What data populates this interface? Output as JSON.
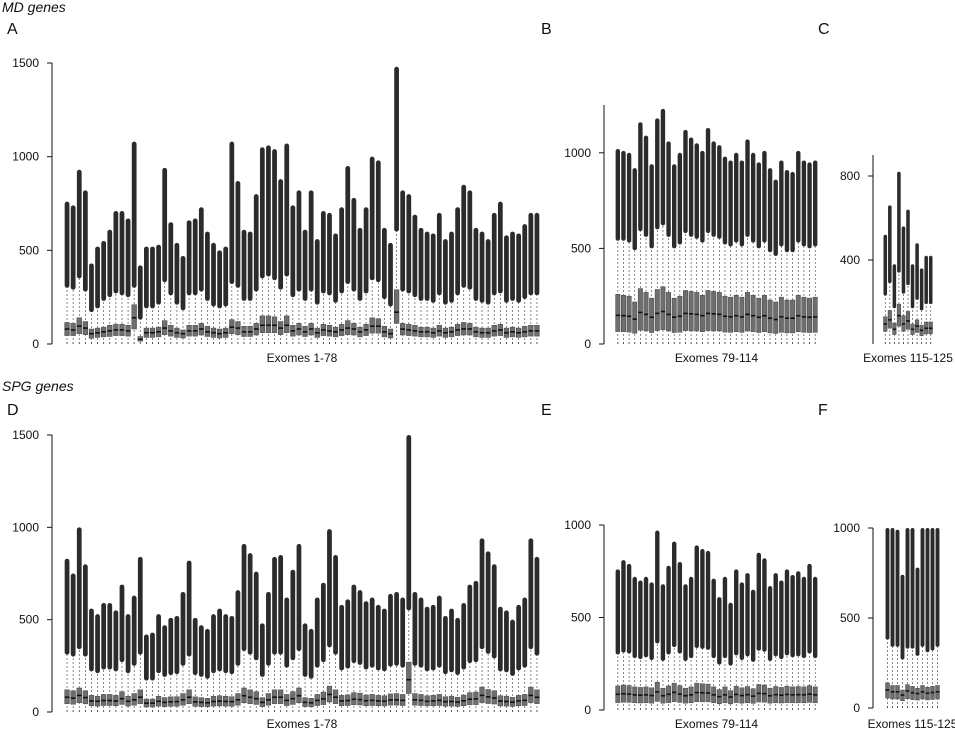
{
  "figure": {
    "sections": [
      {
        "title": "MD genes"
      },
      {
        "title": "SPG genes"
      }
    ]
  },
  "chart_data": [
    {
      "panel": "A",
      "section": "MD genes",
      "type": "box",
      "xlabel": "Exomes 1-78",
      "ylabel": "",
      "ylim": [
        0,
        1500
      ],
      "yticks": [
        0,
        500,
        1000,
        1500
      ],
      "n": 78,
      "upper_whisker": [
        760,
        740,
        930,
        820,
        430,
        520,
        550,
        610,
        710,
        710,
        670,
        1080,
        420,
        520,
        520,
        530,
        940,
        650,
        540,
        470,
        660,
        670,
        730,
        600,
        540,
        500,
        520,
        1080,
        870,
        610,
        600,
        800,
        1050,
        1060,
        1040,
        880,
        1070,
        740,
        820,
        610,
        820,
        560,
        710,
        700,
        590,
        730,
        950,
        780,
        620,
        730,
        1000,
        980,
        620,
        540,
        1480,
        820,
        800,
        690,
        620,
        600,
        590,
        700,
        560,
        600,
        730,
        850,
        820,
        620,
        600,
        560,
        700,
        760,
        580,
        600,
        590,
        640,
        700,
        700
      ],
      "upper_hinge": [
        300,
        290,
        350,
        280,
        170,
        190,
        230,
        250,
        270,
        260,
        250,
        300,
        130,
        190,
        190,
        210,
        330,
        260,
        210,
        180,
        260,
        260,
        280,
        230,
        200,
        190,
        200,
        320,
        300,
        230,
        230,
        280,
        350,
        360,
        340,
        290,
        360,
        250,
        280,
        230,
        280,
        210,
        270,
        260,
        220,
        270,
        320,
        280,
        230,
        270,
        340,
        330,
        240,
        200,
        600,
        280,
        270,
        250,
        230,
        230,
        220,
        260,
        210,
        220,
        260,
        300,
        290,
        230,
        220,
        210,
        260,
        270,
        220,
        230,
        220,
        240,
        260,
        260
      ],
      "q3": [
        115,
        110,
        140,
        120,
        80,
        85,
        90,
        100,
        105,
        105,
        100,
        210,
        40,
        85,
        85,
        90,
        125,
        100,
        85,
        75,
        100,
        100,
        110,
        95,
        85,
        80,
        85,
        130,
        120,
        95,
        95,
        110,
        150,
        150,
        145,
        120,
        150,
        100,
        110,
        95,
        110,
        85,
        105,
        100,
        90,
        105,
        125,
        110,
        90,
        105,
        140,
        135,
        95,
        80,
        290,
        110,
        105,
        100,
        90,
        90,
        85,
        100,
        85,
        90,
        105,
        115,
        110,
        90,
        85,
        85,
        100,
        105,
        85,
        90,
        85,
        95,
        100,
        100
      ],
      "median": [
        80,
        75,
        95,
        85,
        55,
        60,
        65,
        70,
        75,
        75,
        70,
        140,
        25,
        60,
        60,
        65,
        85,
        70,
        60,
        55,
        70,
        70,
        80,
        65,
        60,
        55,
        60,
        90,
        85,
        65,
        65,
        80,
        100,
        100,
        100,
        85,
        100,
        70,
        80,
        65,
        80,
        60,
        75,
        70,
        65,
        75,
        85,
        80,
        65,
        75,
        95,
        95,
        65,
        55,
        170,
        80,
        75,
        70,
        65,
        65,
        60,
        70,
        60,
        65,
        75,
        80,
        80,
        65,
        60,
        60,
        70,
        75,
        60,
        65,
        60,
        65,
        70,
        70
      ],
      "q1": [
        45,
        45,
        55,
        50,
        30,
        35,
        38,
        40,
        45,
        45,
        42,
        80,
        15,
        35,
        35,
        38,
        50,
        42,
        35,
        32,
        42,
        42,
        48,
        40,
        35,
        32,
        35,
        55,
        50,
        40,
        40,
        48,
        60,
        60,
        60,
        50,
        60,
        42,
        48,
        40,
        48,
        35,
        45,
        42,
        38,
        45,
        50,
        48,
        38,
        45,
        58,
        58,
        38,
        32,
        110,
        48,
        45,
        42,
        38,
        38,
        35,
        42,
        35,
        38,
        45,
        48,
        48,
        38,
        35,
        35,
        42,
        45,
        35,
        38,
        35,
        38,
        42,
        42
      ]
    },
    {
      "panel": "B",
      "section": "MD genes",
      "type": "box",
      "xlabel": "Exomes 79-114",
      "ylabel": "",
      "ylim": [
        0,
        1250
      ],
      "yticks": [
        0,
        500,
        1000
      ],
      "n": 36,
      "upper_whisker": [
        1020,
        1010,
        1000,
        920,
        1160,
        1090,
        940,
        1180,
        1230,
        1060,
        940,
        1000,
        1120,
        1080,
        1050,
        1010,
        1130,
        1060,
        1040,
        980,
        960,
        1000,
        960,
        1070,
        1000,
        950,
        1010,
        920,
        860,
        960,
        910,
        900,
        1010,
        960,
        950,
        960
      ],
      "upper_hinge": [
        540,
        540,
        530,
        490,
        590,
        560,
        500,
        600,
        620,
        560,
        500,
        520,
        580,
        560,
        550,
        530,
        580,
        560,
        550,
        520,
        510,
        530,
        510,
        560,
        530,
        500,
        530,
        480,
        460,
        510,
        480,
        480,
        530,
        510,
        500,
        510
      ],
      "q3": [
        260,
        255,
        250,
        220,
        290,
        270,
        240,
        285,
        300,
        270,
        240,
        250,
        280,
        275,
        270,
        255,
        280,
        275,
        270,
        250,
        245,
        255,
        245,
        270,
        255,
        240,
        255,
        230,
        220,
        245,
        230,
        230,
        255,
        245,
        240,
        245
      ],
      "median": [
        150,
        148,
        145,
        130,
        165,
        155,
        140,
        160,
        170,
        155,
        140,
        145,
        160,
        158,
        155,
        148,
        160,
        158,
        155,
        145,
        142,
        148,
        142,
        155,
        148,
        140,
        148,
        135,
        128,
        142,
        135,
        135,
        148,
        142,
        140,
        142
      ],
      "q1": [
        65,
        64,
        62,
        56,
        72,
        68,
        60,
        70,
        75,
        68,
        60,
        62,
        70,
        68,
        68,
        64,
        70,
        68,
        68,
        62,
        61,
        64,
        61,
        68,
        64,
        60,
        64,
        58,
        55,
        61,
        58,
        58,
        64,
        61,
        60,
        61
      ]
    },
    {
      "panel": "C",
      "section": "MD genes",
      "type": "box",
      "xlabel": "Exomes 115-125",
      "ylabel": "",
      "ylim": [
        0,
        900
      ],
      "yticks": [
        400,
        800
      ],
      "n": 11,
      "upper_whisker": [
        520,
        660,
        380,
        820,
        560,
        640,
        380,
        480,
        360,
        420,
        420
      ],
      "upper_hinge": [
        230,
        290,
        170,
        340,
        240,
        280,
        170,
        210,
        160,
        190,
        190
      ],
      "q3": [
        130,
        160,
        100,
        190,
        135,
        155,
        95,
        115,
        90,
        105,
        105
      ],
      "median": [
        95,
        115,
        70,
        135,
        95,
        110,
        70,
        85,
        65,
        75,
        75
      ],
      "q1": [
        60,
        75,
        45,
        85,
        60,
        70,
        45,
        55,
        40,
        48,
        48
      ]
    },
    {
      "panel": "D",
      "section": "SPG genes",
      "type": "box",
      "xlabel": "Exomes 1-78",
      "ylabel": "",
      "ylim": [
        0,
        1500
      ],
      "yticks": [
        0,
        500,
        1000,
        1500
      ],
      "n": 78,
      "upper_whisker": [
        830,
        750,
        1000,
        800,
        560,
        530,
        590,
        590,
        550,
        690,
        530,
        630,
        840,
        420,
        430,
        530,
        470,
        510,
        520,
        650,
        820,
        510,
        470,
        450,
        530,
        560,
        530,
        520,
        660,
        910,
        860,
        760,
        480,
        650,
        840,
        850,
        620,
        770,
        910,
        480,
        450,
        620,
        700,
        990,
        850,
        580,
        610,
        690,
        660,
        600,
        620,
        580,
        560,
        640,
        650,
        620,
        1500,
        650,
        620,
        570,
        580,
        630,
        520,
        560,
        510,
        590,
        690,
        710,
        940,
        870,
        800,
        570,
        550,
        500,
        580,
        620,
        940,
        840
      ],
      "upper_hinge": [
        310,
        300,
        340,
        300,
        220,
        210,
        230,
        230,
        220,
        270,
        210,
        250,
        310,
        170,
        170,
        210,
        190,
        200,
        205,
        250,
        300,
        200,
        190,
        180,
        210,
        220,
        210,
        205,
        250,
        330,
        310,
        280,
        190,
        250,
        310,
        310,
        240,
        280,
        330,
        190,
        180,
        240,
        270,
        350,
        310,
        225,
        235,
        265,
        255,
        230,
        240,
        225,
        220,
        245,
        250,
        240,
        550,
        250,
        240,
        220,
        225,
        240,
        205,
        215,
        200,
        230,
        265,
        270,
        340,
        315,
        290,
        220,
        215,
        195,
        225,
        240,
        340,
        305
      ],
      "q3": [
        120,
        115,
        130,
        115,
        90,
        85,
        95,
        95,
        90,
        110,
        85,
        100,
        120,
        70,
        70,
        85,
        78,
        82,
        83,
        100,
        120,
        82,
        78,
        74,
        85,
        88,
        85,
        83,
        100,
        130,
        120,
        110,
        78,
        100,
        120,
        120,
        95,
        110,
        130,
        78,
        74,
        95,
        108,
        140,
        120,
        90,
        93,
        105,
        102,
        92,
        95,
        90,
        88,
        98,
        100,
        95,
        270,
        100,
        95,
        88,
        90,
        95,
        83,
        86,
        80,
        92,
        105,
        108,
        135,
        122,
        115,
        88,
        86,
        79,
        90,
        95,
        135,
        120
      ],
      "median": [
        80,
        75,
        90,
        78,
        60,
        58,
        62,
        62,
        60,
        72,
        58,
        66,
        80,
        48,
        48,
        58,
        52,
        55,
        56,
        66,
        80,
        55,
        52,
        50,
        57,
        59,
        57,
        56,
        66,
        88,
        80,
        72,
        52,
        66,
        80,
        80,
        63,
        72,
        88,
        52,
        50,
        63,
        71,
        95,
        80,
        60,
        62,
        69,
        67,
        61,
        63,
        60,
        59,
        65,
        66,
        63,
        175,
        66,
        63,
        58,
        60,
        63,
        56,
        57,
        54,
        61,
        69,
        71,
        90,
        82,
        76,
        59,
        57,
        53,
        60,
        63,
        90,
        80
      ],
      "q1": [
        45,
        42,
        50,
        44,
        34,
        32,
        35,
        35,
        34,
        41,
        32,
        37,
        45,
        27,
        27,
        32,
        29,
        31,
        31,
        37,
        45,
        31,
        29,
        28,
        32,
        33,
        32,
        31,
        37,
        50,
        45,
        41,
        29,
        37,
        45,
        45,
        35,
        41,
        50,
        29,
        28,
        35,
        40,
        54,
        45,
        34,
        35,
        39,
        38,
        34,
        35,
        34,
        33,
        37,
        37,
        35,
        100,
        37,
        35,
        33,
        34,
        35,
        31,
        32,
        30,
        34,
        39,
        40,
        51,
        46,
        43,
        33,
        32,
        30,
        34,
        35,
        51,
        45
      ]
    },
    {
      "panel": "E",
      "section": "SPG genes",
      "type": "box",
      "xlabel": "Exomes 79-114",
      "ylabel": "",
      "ylim": [
        0,
        1000
      ],
      "yticks": [
        0,
        500,
        1000
      ],
      "n": 36,
      "upper_whisker": [
        760,
        810,
        790,
        720,
        700,
        720,
        690,
        970,
        680,
        780,
        910,
        800,
        680,
        720,
        890,
        870,
        860,
        710,
        610,
        720,
        580,
        760,
        690,
        740,
        650,
        850,
        820,
        670,
        740,
        700,
        760,
        730,
        750,
        720,
        790,
        720
      ],
      "upper_hinge": [
        300,
        310,
        305,
        280,
        275,
        285,
        270,
        360,
        265,
        300,
        340,
        305,
        265,
        280,
        335,
        330,
        325,
        280,
        245,
        280,
        240,
        295,
        270,
        290,
        260,
        320,
        315,
        265,
        290,
        275,
        295,
        285,
        290,
        280,
        305,
        280
      ],
      "q3": [
        130,
        135,
        132,
        125,
        122,
        125,
        120,
        150,
        118,
        130,
        145,
        132,
        118,
        125,
        145,
        142,
        140,
        125,
        110,
        125,
        105,
        128,
        120,
        127,
        115,
        138,
        135,
        118,
        127,
        122,
        128,
        125,
        127,
        125,
        132,
        125
      ],
      "median": [
        85,
        88,
        86,
        82,
        80,
        82,
        78,
        98,
        77,
        85,
        95,
        86,
        77,
        82,
        94,
        93,
        92,
        82,
        72,
        82,
        70,
        84,
        78,
        83,
        75,
        90,
        88,
        77,
        83,
        80,
        84,
        82,
        83,
        82,
        86,
        82
      ],
      "q1": [
        40,
        42,
        41,
        39,
        38,
        39,
        37,
        47,
        37,
        40,
        45,
        41,
        37,
        39,
        45,
        44,
        44,
        39,
        34,
        39,
        33,
        40,
        37,
        39,
        36,
        43,
        42,
        37,
        39,
        38,
        40,
        39,
        39,
        39,
        41,
        39
      ]
    },
    {
      "panel": "F",
      "section": "SPG genes",
      "type": "box",
      "xlabel": "Exomes 115-125",
      "ylabel": "",
      "ylim": [
        0,
        1000
      ],
      "yticks": [
        0,
        500,
        1000
      ],
      "n": 11,
      "upper_whisker": [
        1000,
        1000,
        990,
        740,
        1000,
        1000,
        780,
        1000,
        1000,
        1000,
        1000
      ],
      "upper_hinge": [
        380,
        340,
        340,
        270,
        330,
        330,
        290,
        340,
        310,
        320,
        340
      ],
      "q3": [
        140,
        125,
        125,
        100,
        130,
        120,
        110,
        125,
        115,
        120,
        125
      ],
      "median": [
        100,
        90,
        90,
        72,
        95,
        85,
        80,
        90,
        82,
        86,
        90
      ],
      "q1": [
        55,
        50,
        50,
        40,
        52,
        47,
        44,
        50,
        45,
        48,
        50
      ]
    }
  ]
}
